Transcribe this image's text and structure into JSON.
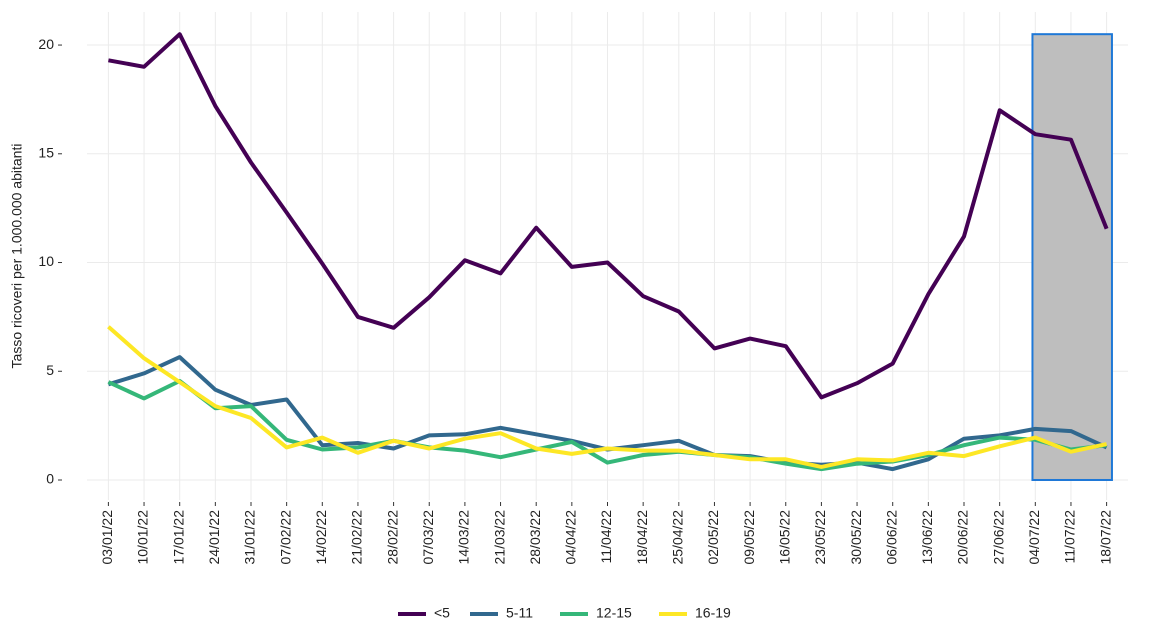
{
  "chart_data": {
    "type": "line",
    "y_label": "Tasso ricoveri per 1.000.000 abitanti",
    "categories": [
      "03/01/22",
      "10/01/22",
      "17/01/22",
      "24/01/22",
      "31/01/22",
      "07/02/22",
      "14/02/22",
      "21/02/22",
      "28/02/22",
      "07/03/22",
      "14/03/22",
      "21/03/22",
      "28/03/22",
      "04/04/22",
      "11/04/22",
      "18/04/22",
      "25/04/22",
      "02/05/22",
      "09/05/22",
      "16/05/22",
      "23/05/22",
      "30/05/22",
      "06/06/22",
      "13/06/22",
      "20/06/22",
      "27/06/22",
      "04/07/22",
      "11/07/22",
      "18/07/22"
    ],
    "series": [
      {
        "name": "<5",
        "color": "#440154",
        "values": [
          19.3,
          19.0,
          20.5,
          17.2,
          14.6,
          12.3,
          9.95,
          7.5,
          7.0,
          8.4,
          10.1,
          9.5,
          11.6,
          9.8,
          10.0,
          8.45,
          7.75,
          6.05,
          6.5,
          6.15,
          3.8,
          4.45,
          5.35,
          8.55,
          11.2,
          17.0,
          15.9,
          15.65,
          11.55
        ]
      },
      {
        "name": "5-11",
        "color": "#31688e",
        "values": [
          4.4,
          4.9,
          5.65,
          4.15,
          3.45,
          3.7,
          1.6,
          1.7,
          1.45,
          2.05,
          2.1,
          2.4,
          2.1,
          1.8,
          1.4,
          1.6,
          1.8,
          1.15,
          1.1,
          0.8,
          0.7,
          0.8,
          0.5,
          0.95,
          1.9,
          2.05,
          2.35,
          2.25,
          1.5
        ]
      },
      {
        "name": "12-15",
        "color": "#35b779",
        "values": [
          4.5,
          3.75,
          4.55,
          3.3,
          3.4,
          1.85,
          1.4,
          1.5,
          1.8,
          1.5,
          1.35,
          1.05,
          1.4,
          1.75,
          0.8,
          1.15,
          1.3,
          1.15,
          1.05,
          0.75,
          0.5,
          0.75,
          0.85,
          1.15,
          1.6,
          1.95,
          1.85,
          1.4,
          1.6
        ]
      },
      {
        "name": "16-19",
        "color": "#fde725",
        "values": [
          7.05,
          5.6,
          4.5,
          3.4,
          2.85,
          1.5,
          1.95,
          1.25,
          1.8,
          1.45,
          1.9,
          2.15,
          1.45,
          1.2,
          1.45,
          1.35,
          1.35,
          1.15,
          0.95,
          0.95,
          0.6,
          0.95,
          0.9,
          1.25,
          1.1,
          1.55,
          1.95,
          1.3,
          1.65
        ]
      }
    ],
    "ylim": [
      -0.92,
      21.52
    ],
    "yticks": [
      0,
      5,
      10,
      15,
      20
    ],
    "grid": true,
    "legend": "bottom",
    "highlight": {
      "x": [
        "04/07/22",
        "18/07/22"
      ],
      "y": [
        0,
        20.5
      ],
      "color": "#bebebe",
      "border": "#1e78d7"
    }
  }
}
